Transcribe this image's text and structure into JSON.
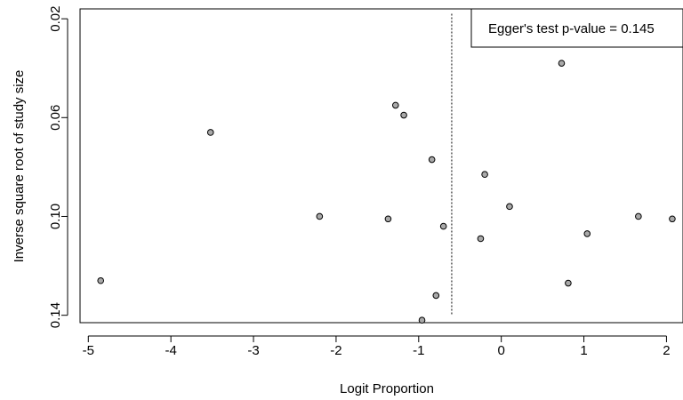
{
  "chart_data": {
    "type": "scatter",
    "xlabel": "Logit Proportion",
    "ylabel": "Inverse square root of study size",
    "xlim": [
      -5.1,
      2.2
    ],
    "ylim": [
      0.143,
      0.016
    ],
    "y_axis_inverted": true,
    "xticks": [
      -5,
      -4,
      -3,
      -2,
      -1,
      0,
      1,
      2
    ],
    "yticks": [
      0.02,
      0.06,
      0.1,
      0.14
    ],
    "ytick_labels": [
      "0.02",
      "0.06",
      "0.10",
      "0.14"
    ],
    "grid": false,
    "marker_fill": "#a9a9a9",
    "marker_stroke": "#000000",
    "reference_line": {
      "x": -0.6,
      "style": "dotted"
    },
    "annotation": {
      "text": "Egger's test p-value = 0.145",
      "placement": "top-right"
    },
    "points": [
      {
        "x": -4.85,
        "y": 0.126
      },
      {
        "x": -3.52,
        "y": 0.066
      },
      {
        "x": -2.2,
        "y": 0.1
      },
      {
        "x": -1.37,
        "y": 0.101
      },
      {
        "x": -1.28,
        "y": 0.055
      },
      {
        "x": -1.18,
        "y": 0.059
      },
      {
        "x": -0.96,
        "y": 0.142
      },
      {
        "x": -0.84,
        "y": 0.077
      },
      {
        "x": -0.79,
        "y": 0.132
      },
      {
        "x": -0.7,
        "y": 0.104
      },
      {
        "x": -0.25,
        "y": 0.109
      },
      {
        "x": -0.2,
        "y": 0.083
      },
      {
        "x": 0.1,
        "y": 0.096
      },
      {
        "x": 0.73,
        "y": 0.038
      },
      {
        "x": 0.81,
        "y": 0.127
      },
      {
        "x": 1.04,
        "y": 0.107
      },
      {
        "x": 1.66,
        "y": 0.1
      },
      {
        "x": 2.07,
        "y": 0.101
      }
    ]
  }
}
